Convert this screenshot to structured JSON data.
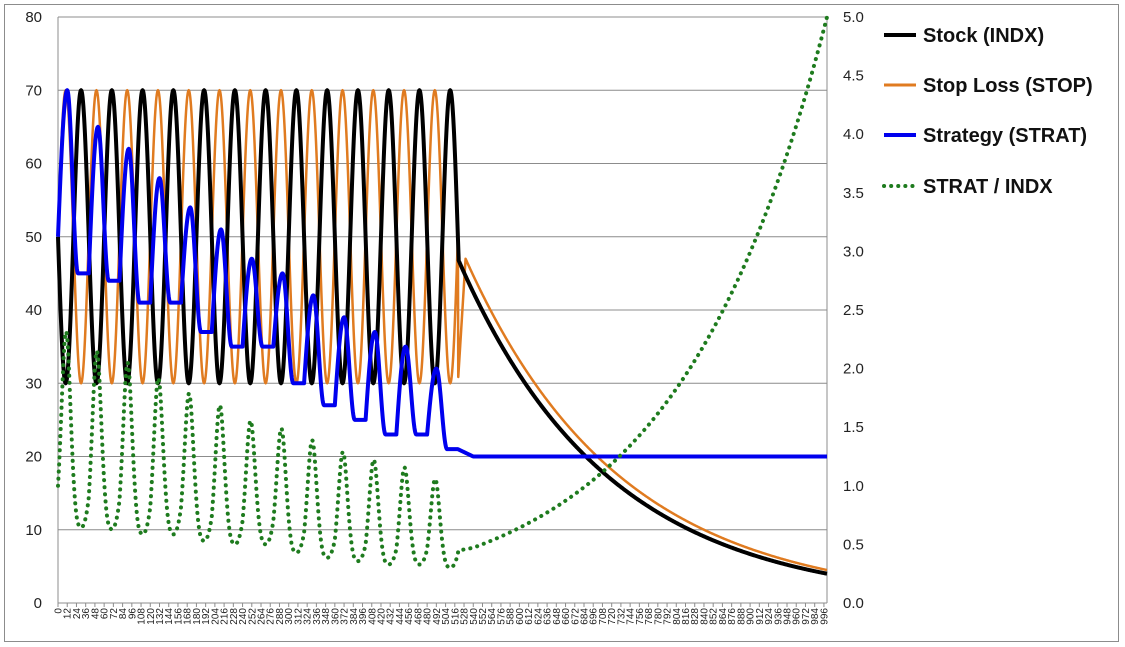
{
  "chart_data": {
    "type": "line",
    "x_range": [
      0,
      1000
    ],
    "x_tick_step": 12,
    "x_tick_labels": [
      "0",
      "12",
      "24",
      "36",
      "48",
      "60",
      "72",
      "84",
      "96",
      "108",
      "120",
      "132",
      "144",
      "156",
      "168",
      "180",
      "192",
      "204",
      "216",
      "228",
      "240",
      "252",
      "264",
      "276",
      "288",
      "300",
      "312",
      "324",
      "336",
      "348",
      "360",
      "372",
      "384",
      "396",
      "408",
      "420",
      "432",
      "444",
      "456",
      "468",
      "480",
      "492",
      "504",
      "516",
      "528",
      "540",
      "552",
      "564",
      "576",
      "588",
      "600",
      "612",
      "624",
      "636",
      "648",
      "660",
      "672",
      "684",
      "696",
      "708",
      "720",
      "732",
      "744",
      "756",
      "768",
      "780",
      "792",
      "804",
      "816",
      "828",
      "840",
      "852",
      "864",
      "876",
      "888",
      "900",
      "912",
      "924",
      "936",
      "948",
      "960",
      "972",
      "984",
      "996"
    ],
    "y_left": {
      "min": 0,
      "max": 80,
      "ticks": [
        "0",
        "10",
        "20",
        "30",
        "40",
        "50",
        "60",
        "70",
        "80"
      ]
    },
    "y_right": {
      "min": 0,
      "max": 5,
      "ticks": [
        "0.0",
        "0.5",
        "1.0",
        "1.5",
        "2.0",
        "2.5",
        "3.0",
        "3.5",
        "4.0",
        "4.5",
        "5.0"
      ]
    },
    "grid": "horizontal",
    "legend_position": "right",
    "oscillation": {
      "period": 40,
      "amplitude": 20,
      "mid": 50,
      "low": 30,
      "end_x": 520
    },
    "decay": {
      "start_x": 520,
      "end_x": 1000,
      "indx_start": 47,
      "indx_end": 4,
      "stop_start": 47,
      "stop_end": 4.5
    },
    "series": [
      {
        "name": "Stock (INDX)",
        "color": "#000000",
        "axis": "left",
        "style": "solid",
        "notes_points": [
          [
            0,
            50
          ],
          [
            20,
            30
          ],
          [
            40,
            70
          ],
          [
            520,
            30
          ],
          [
            521,
            47
          ],
          [
            1000,
            4
          ]
        ]
      },
      {
        "name": "Stop Loss (STOP)",
        "color": "#E07B20",
        "axis": "left",
        "style": "solid",
        "notes_points": [
          [
            0,
            50
          ],
          [
            20,
            70
          ],
          [
            40,
            30
          ],
          [
            520,
            30
          ],
          [
            530,
            47
          ],
          [
            1000,
            4.5
          ]
        ]
      },
      {
        "name": "Strategy (STRAT)",
        "color": "#0000EE",
        "axis": "left",
        "style": "solid",
        "valleys": [
          [
            12,
            70
          ],
          [
            28,
            45
          ],
          [
            52,
            65
          ],
          [
            68,
            44
          ],
          [
            92,
            62
          ],
          [
            108,
            41
          ],
          [
            132,
            58
          ],
          [
            148,
            41
          ],
          [
            172,
            54
          ],
          [
            188,
            37
          ],
          [
            212,
            51
          ],
          [
            228,
            35
          ],
          [
            252,
            47
          ],
          [
            268,
            35
          ],
          [
            292,
            45
          ],
          [
            308,
            30
          ],
          [
            332,
            42
          ],
          [
            348,
            27
          ],
          [
            372,
            39
          ],
          [
            388,
            25
          ],
          [
            412,
            37
          ],
          [
            428,
            23
          ],
          [
            452,
            35
          ],
          [
            468,
            23
          ],
          [
            492,
            32
          ],
          [
            508,
            21
          ],
          [
            520,
            20
          ]
        ],
        "tail": [
          [
            520,
            21
          ],
          [
            540,
            20
          ],
          [
            1000,
            20
          ]
        ]
      },
      {
        "name": "STRAT / INDX",
        "color": "#1E7B1E",
        "axis": "right",
        "style": "dotted",
        "notes_points": [
          [
            0,
            1.0
          ],
          [
            30,
            1.55
          ],
          [
            550,
            0.47
          ],
          [
            1000,
            5.0
          ]
        ]
      }
    ]
  }
}
